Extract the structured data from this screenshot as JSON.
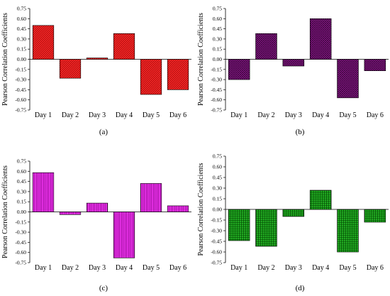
{
  "chart_data": [
    {
      "type": "bar",
      "panel_label": "(a)",
      "ylabel": "Pearson Correlation Coefficients",
      "ylim": [
        -0.75,
        0.75
      ],
      "yticks": [
        "0.75",
        "0.60",
        "0.45",
        "0.30",
        "0.15",
        "0.00",
        "-0.15",
        "-0.30",
        "-0.45",
        "-0.60",
        "-0.75"
      ],
      "categories": [
        "Day 1",
        "Day 2",
        "Day 3",
        "Day 4",
        "Day 5",
        "Day 6"
      ],
      "values": [
        0.5,
        -0.28,
        0.02,
        0.38,
        -0.52,
        -0.45
      ],
      "color": "#ff1a1a",
      "pattern": "diagonal"
    },
    {
      "type": "bar",
      "panel_label": "(b)",
      "ylabel": "Pearson Correlation Coefficients",
      "ylim": [
        -0.75,
        0.75
      ],
      "yticks": [
        "0.75",
        "0.60",
        "0.45",
        "0.30",
        "0.15",
        "0.00",
        "-0.15",
        "-0.30",
        "-0.45",
        "-0.60",
        "-0.75"
      ],
      "categories": [
        "Day 1",
        "Day 2",
        "Day 3",
        "Day 4",
        "Day 5",
        "Day 6"
      ],
      "values": [
        -0.3,
        0.38,
        -0.1,
        0.6,
        -0.57,
        -0.17
      ],
      "color": "#8a1a8a",
      "pattern": "crosshatch"
    },
    {
      "type": "bar",
      "panel_label": "(c)",
      "ylabel": "Pearson Correlation Coefficients",
      "ylim": [
        -0.75,
        0.75
      ],
      "yticks": [
        "0.75",
        "0.60",
        "0.45",
        "0.30",
        "0.15",
        "0.00",
        "-0.15",
        "-0.30",
        "-0.45",
        "-0.60",
        "-0.75"
      ],
      "categories": [
        "Day 1",
        "Day 2",
        "Day 3",
        "Day 4",
        "Day 5",
        "Day 6"
      ],
      "values": [
        0.58,
        -0.04,
        0.13,
        -0.68,
        0.42,
        0.09
      ],
      "color": "#ee22ee",
      "pattern": "vertical"
    },
    {
      "type": "bar",
      "panel_label": "(d)",
      "ylabel": "Pearson Correlation Coefficients",
      "ylim": [
        -0.75,
        0.75
      ],
      "yticks": [
        "0.75",
        "0.60",
        "0.45",
        "0.30",
        "0.15",
        "0.00",
        "-0.15",
        "-0.30",
        "-0.45",
        "-0.60",
        "-0.75"
      ],
      "categories": [
        "Day 1",
        "Day 2",
        "Day 3",
        "Day 4",
        "Day 5",
        "Day 6"
      ],
      "values": [
        -0.44,
        -0.52,
        -0.1,
        0.27,
        -0.6,
        -0.18
      ],
      "color": "#1a9a1a",
      "pattern": "grid"
    }
  ]
}
